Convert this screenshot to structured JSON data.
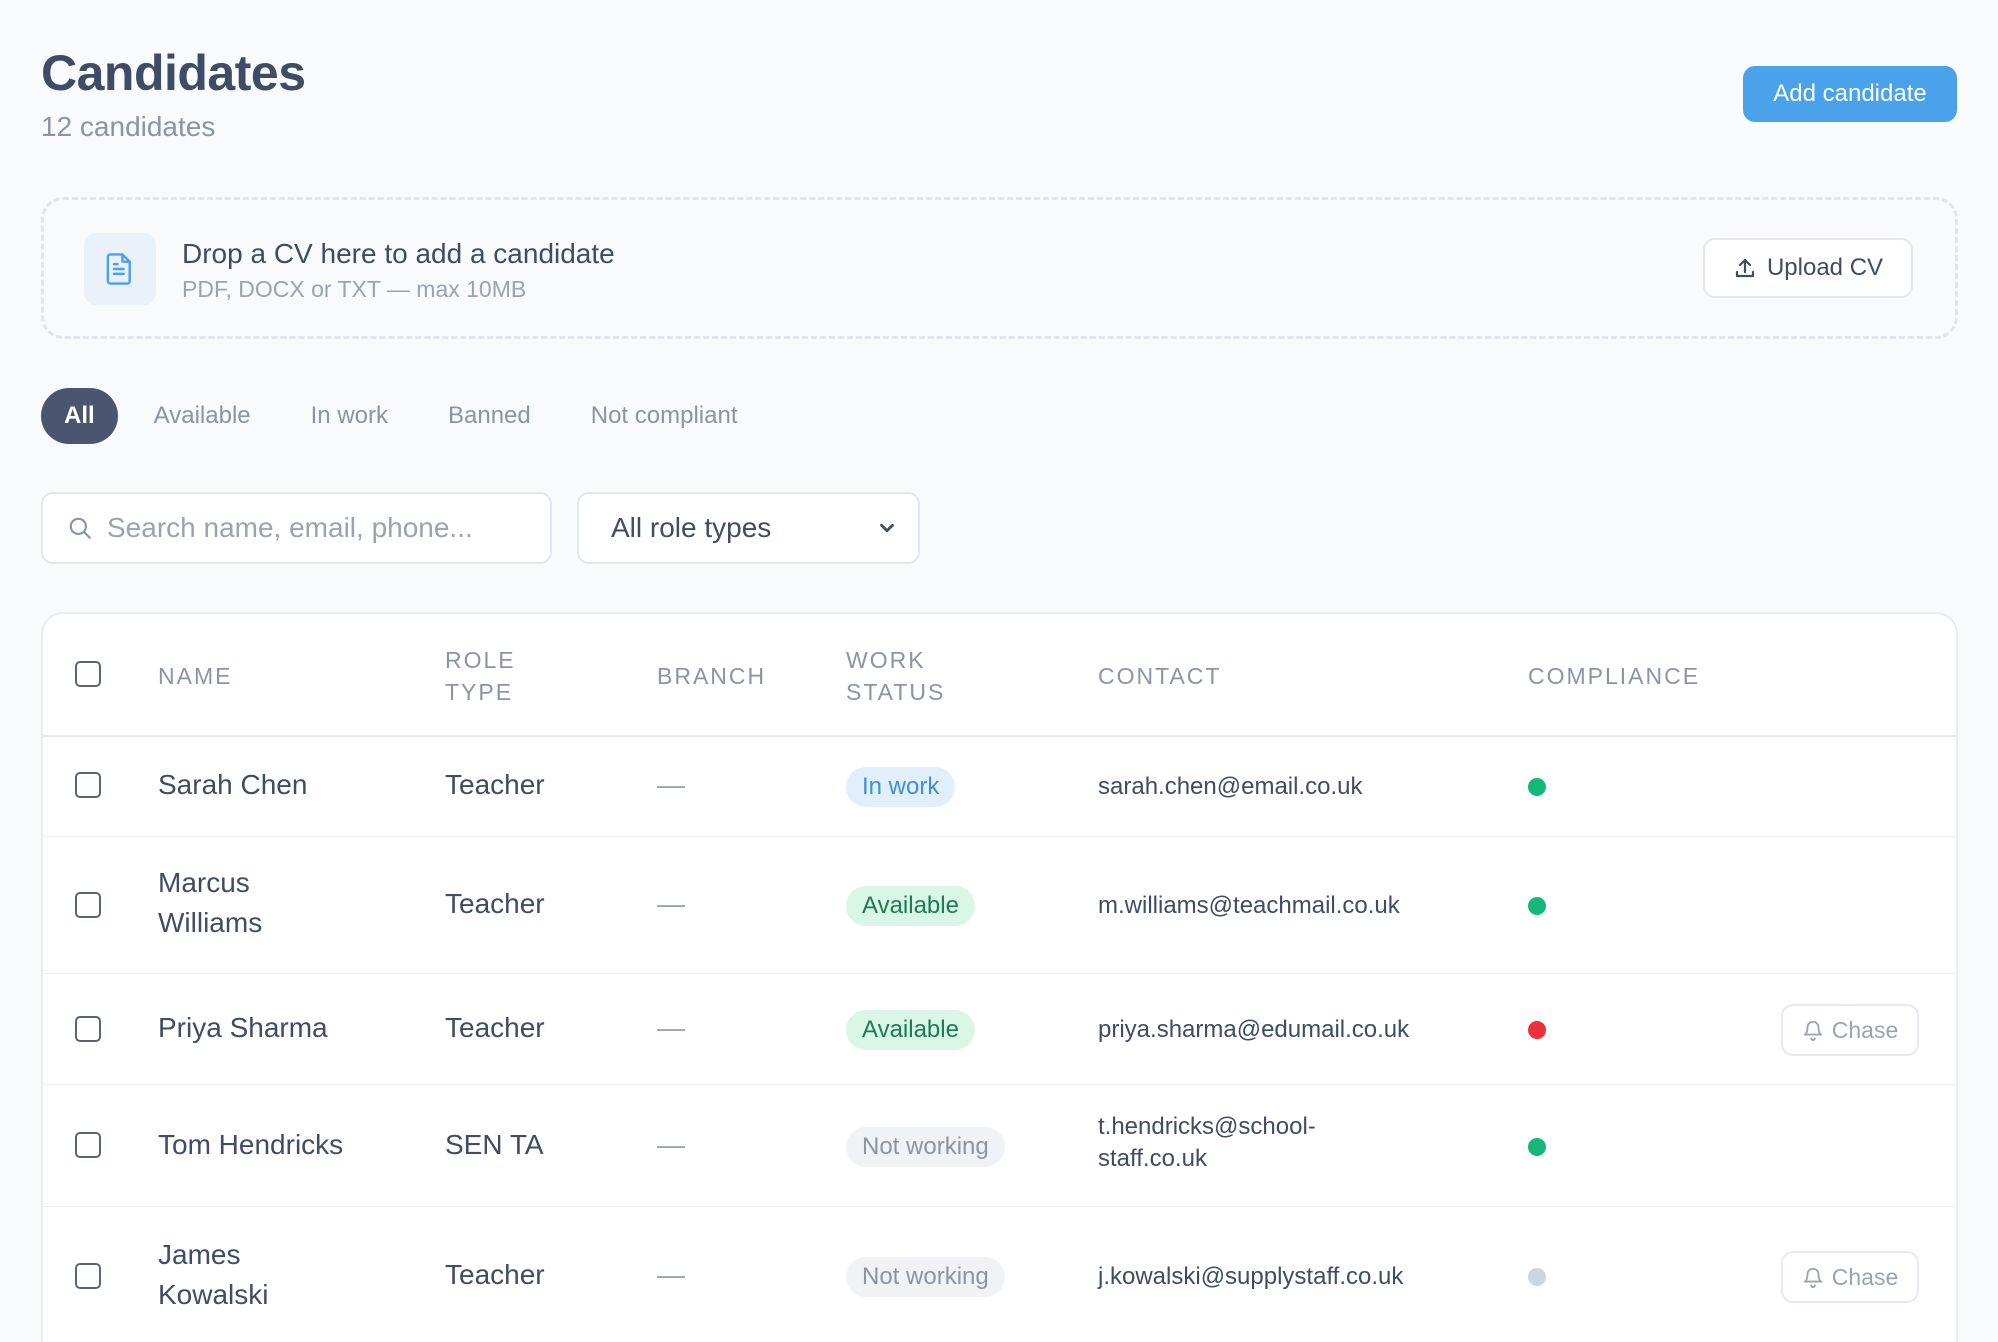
{
  "header": {
    "title": "Candidates",
    "count_text": "12 candidates",
    "add_label": "Add candidate"
  },
  "dropzone": {
    "title": "Drop a CV here to add a candidate",
    "hint": "PDF, DOCX or TXT — max 10MB",
    "upload_label": "Upload CV",
    "icon": "document-icon"
  },
  "tabs": [
    {
      "label": "All",
      "active": true
    },
    {
      "label": "Available",
      "active": false
    },
    {
      "label": "In work",
      "active": false
    },
    {
      "label": "Banned",
      "active": false
    },
    {
      "label": "Not compliant",
      "active": false
    }
  ],
  "filters": {
    "search_placeholder": "Search name, email, phone...",
    "role_select": "All role types"
  },
  "table": {
    "columns": {
      "name": "NAME",
      "role_line1": "ROLE",
      "role_line2": "TYPE",
      "branch": "BRANCH",
      "status_line1": "WORK",
      "status_line2": "STATUS",
      "contact": "CONTACT",
      "compliance": "COMPLIANCE"
    },
    "rows": [
      {
        "name": "Sarah Chen",
        "role": "Teacher",
        "branch": "—",
        "status": "In work",
        "contact": "sarah.chen@email.co.uk",
        "compliance": "compliant",
        "chase": ""
      },
      {
        "name": "Marcus Williams",
        "role": "Teacher",
        "branch": "—",
        "status": "Available",
        "contact": "m.williams@teachmail.co.uk",
        "compliance": "compliant",
        "chase": ""
      },
      {
        "name": "Priya Sharma",
        "role": "Teacher",
        "branch": "—",
        "status": "Available",
        "contact": "priya.sharma@edumail.co.uk",
        "compliance": "not-compliant",
        "chase": "Chase"
      },
      {
        "name": "Tom Hendricks",
        "role": "SEN TA",
        "branch": "—",
        "status": "Not working",
        "contact": "t.hendricks@school-staff.co.uk",
        "compliance": "compliant",
        "chase": ""
      },
      {
        "name": "James Kowalski",
        "role": "Teacher",
        "branch": "—",
        "status": "Not working",
        "contact": "j.kowalski@supplystaff.co.uk",
        "compliance": "unknown",
        "chase": "Chase"
      }
    ]
  },
  "colors": {
    "primary": "#4aa3ea",
    "tab_active": "#4a5570",
    "compliant": "#16b87a",
    "not_compliant": "#ef2f3a",
    "unknown": "#cfd5de",
    "in_work_bg": "#e1effc",
    "in_work_fg": "#3f8fd6",
    "available_bg": "#daf6e6",
    "available_fg": "#1b7d4f",
    "not_working_bg": "#f0f2f5",
    "not_working_fg": "#8a94a6"
  }
}
